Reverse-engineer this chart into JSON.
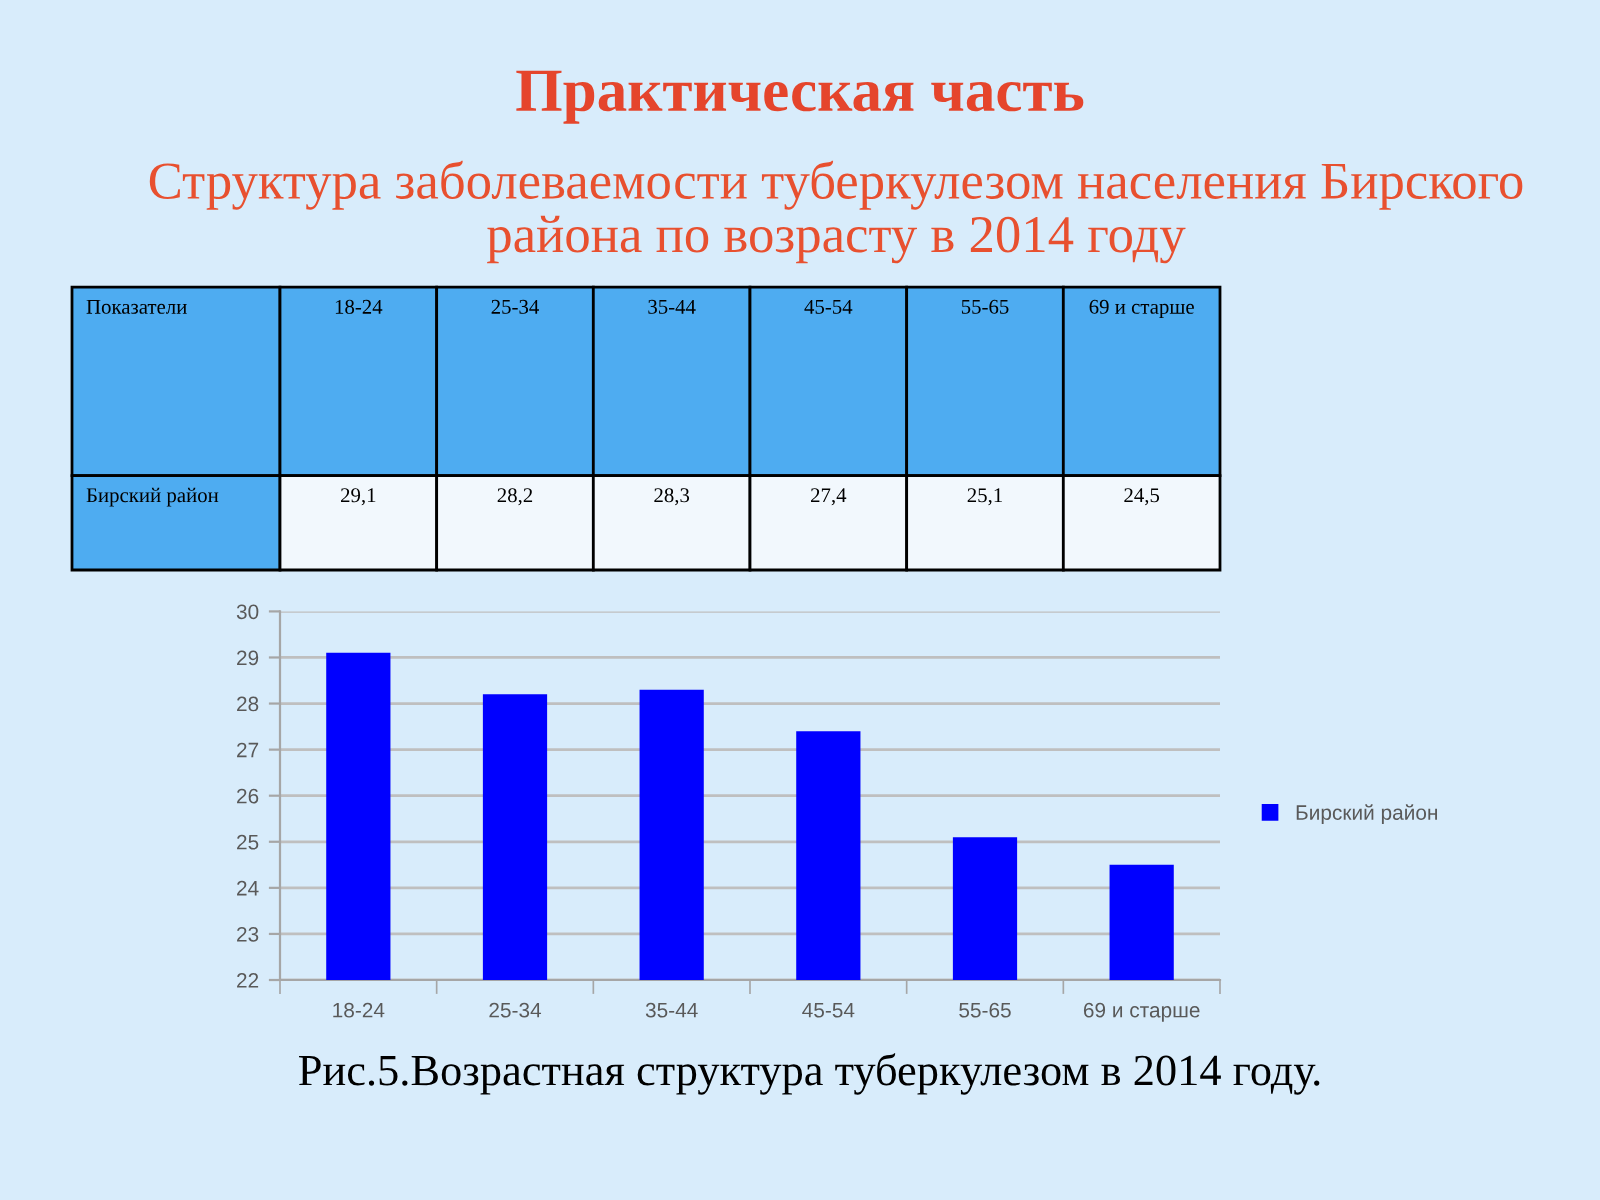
{
  "chart_data": {
    "type": "bar",
    "title": "Практическая часть",
    "subtitle": "Структура заболеваемости туберкулезом населения Бирского района по возрасту в 2014 году",
    "categories": [
      "18-24",
      "25-34",
      "35-44",
      "45-54",
      "55-65",
      "69 и старше"
    ],
    "series": [
      {
        "name": "Бирский район",
        "color": "#0000ff",
        "values": [
          29.1,
          28.2,
          28.3,
          27.4,
          25.1,
          24.5
        ],
        "value_labels": [
          "29,1",
          "28,2",
          "28,3",
          "27,4",
          "25,1",
          "24,5"
        ]
      }
    ],
    "ylim": [
      22,
      30
    ],
    "yticks": [
      22,
      23,
      24,
      25,
      26,
      27,
      28,
      29,
      30
    ],
    "grid": "y",
    "legend": "right",
    "annotations": [
      "Показатели",
      "Рис.5.Возрастная структура туберкулезом в 2014 году."
    ]
  }
}
